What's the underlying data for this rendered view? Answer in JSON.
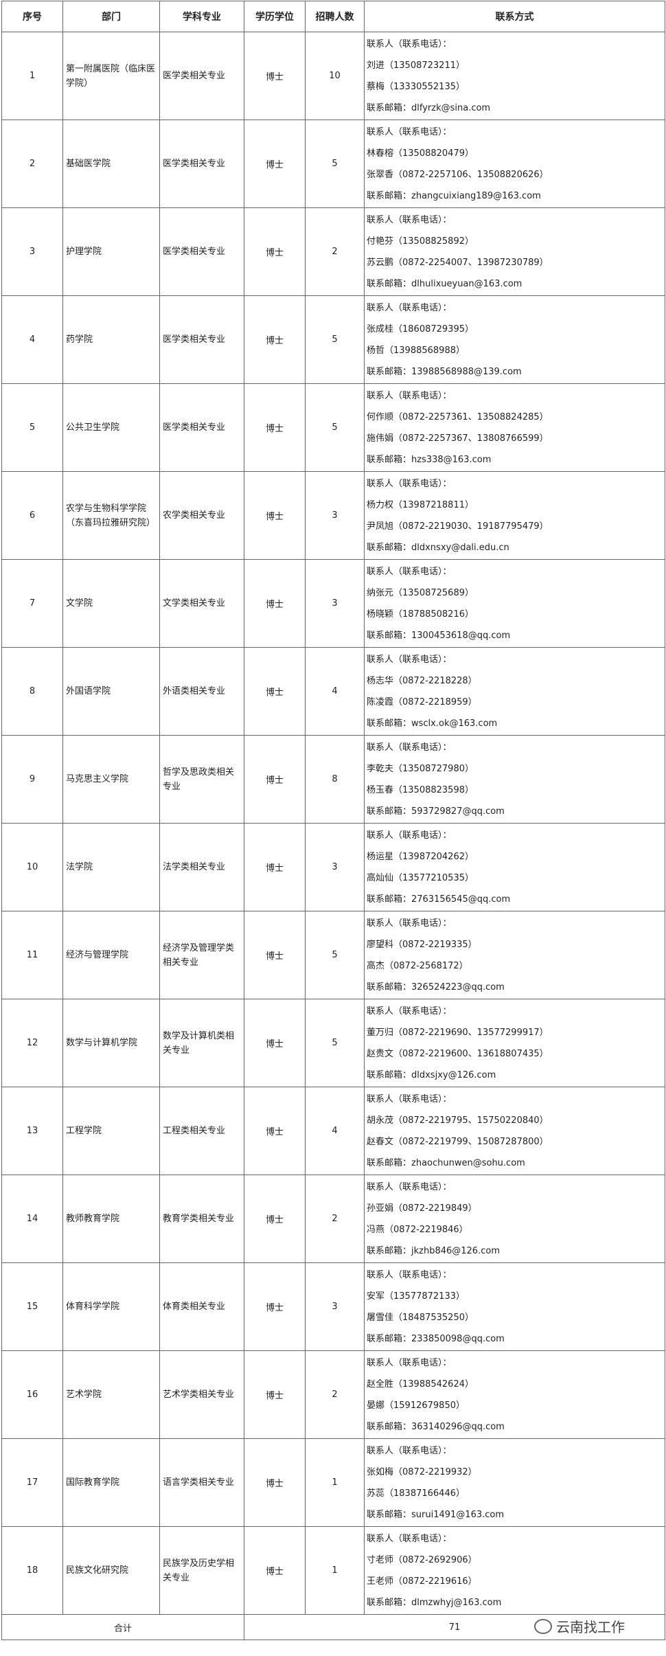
{
  "table": {
    "headers": [
      "序号",
      "部门",
      "学科专业",
      "学历学位",
      "招聘人数",
      "联系方式"
    ],
    "rows": [
      [
        "1",
        "第一附属医院（临床医学院）",
        "医学类相关专业",
        "博士",
        "10",
        [
          "联系人（联系电话）：",
          "刘进（13508723211）",
          "蔡梅（13330552135）",
          "联系邮箱：dlfyrzk@sina.com"
        ]
      ],
      [
        "2",
        "基础医学院",
        "医学类相关专业",
        "博士",
        "5",
        [
          "联系人（联系电话）：",
          "林春榕（13508820479）",
          "张翠香（0872-2257106、13508820626）",
          "联系邮箱：zhangcuixiang189@163.com"
        ]
      ],
      [
        "3",
        "护理学院",
        "医学类相关专业",
        "博士",
        "2",
        [
          "联系人（联系电话）：",
          "付艳芬（13508825892）",
          "苏云鹏（0872-2254007、13987230789）",
          "联系邮箱：dlhulixueyuan@163.com"
        ]
      ],
      [
        "4",
        "药学院",
        "医学类相关专业",
        "博士",
        "5",
        [
          "联系人（联系电话）：",
          "张成桂（18608729395）",
          "杨哲（13988568988）",
          "联系邮箱：13988568988@139.com"
        ]
      ],
      [
        "5",
        "公共卫生学院",
        "医学类相关专业",
        "博士",
        "5",
        [
          "联系人（联系电话）：",
          "何作顺（0872-2257361、13508824285）",
          "施伟娟（0872-2257367、13808766599）",
          "联系邮箱：hzs338@163.com"
        ]
      ],
      [
        "6",
        "农学与生物科学学院（东喜玛拉雅研究院）",
        "农学类相关专业",
        "博士",
        "3",
        [
          "联系人（联系电话）：",
          "杨力权（13987218811）",
          "尹凤旭（0872-2219030、19187795479）",
          "联系邮箱：dldxnsxy@dali.edu.cn"
        ]
      ],
      [
        "7",
        "文学院",
        "文学类相关专业",
        "博士",
        "3",
        [
          "联系人（联系电话）：",
          "纳张元（13508725689）",
          "杨晓颖（18788508216）",
          "联系邮箱：1300453618@qq.com"
        ]
      ],
      [
        "8",
        "外国语学院",
        "外语类相关专业",
        "博士",
        "4",
        [
          "联系人（联系电话）：",
          "杨志华（0872-2218228）",
          "陈凌霞（0872-2218959）",
          "联系邮箱：wsclx.ok@163.com"
        ]
      ],
      [
        "9",
        "马克思主义学院",
        "哲学及思政类相关专业",
        "博士",
        "8",
        [
          "联系人（联系电话）：",
          "李乾夫（13508727980）",
          "杨玉春（13508823598）",
          "联系邮箱：593729827@qq.com"
        ]
      ],
      [
        "10",
        "法学院",
        "法学类相关专业",
        "博士",
        "3",
        [
          "联系人（联系电话）：",
          "杨运星（13987204262）",
          "高灿仙（13577210535）",
          "联系邮箱：2763156545@qq.com"
        ]
      ],
      [
        "11",
        "经济与管理学院",
        "经济学及管理学类相关专业",
        "博士",
        "5",
        [
          "联系人（联系电话）：",
          "廖望科（0872-2219335）",
          "高杰（0872-2568172）",
          "联系邮箱：326524223@qq.com"
        ]
      ],
      [
        "12",
        "数学与计算机学院",
        "数学及计算机类相关专业",
        "博士",
        "5",
        [
          "联系人（联系电话）：",
          "董万归（0872-2219690、13577299917）",
          "赵贵文（0872-2219600、13618807435）",
          "联系邮箱：dldxsjxy@126.com"
        ]
      ],
      [
        "13",
        "工程学院",
        "工程类相关专业",
        "博士",
        "4",
        [
          "联系人（联系电话）：",
          "胡永茂（0872-2219795、15750220840）",
          "赵春文（0872-2219799、15087287800）",
          "联系邮箱：zhaochunwen@sohu.com"
        ]
      ],
      [
        "14",
        "教师教育学院",
        "教育学类相关专业",
        "博士",
        "2",
        [
          "联系人（联系电话）：",
          "孙亚娟（0872-2219849）",
          "冯燕（0872-2219846）",
          "联系邮箱：jkzhb846@126.com"
        ]
      ],
      [
        "15",
        "体育科学学院",
        "体育类相关专业",
        "博士",
        "3",
        [
          "联系人（联系电话）：",
          "安军（13577872133）",
          "屠雪佳（18487535250）",
          "联系邮箱：233850098@qq.com"
        ]
      ],
      [
        "16",
        "艺术学院",
        "艺术学类相关专业",
        "博士",
        "2",
        [
          "联系人（联系电话）：",
          "赵全胜（13988542624）",
          "晏娜（15912679850）",
          "联系邮箱：363140296@qq.com"
        ]
      ],
      [
        "17",
        "国际教育学院",
        "语言学类相关专业",
        "博士",
        "1",
        [
          "联系人（联系电话）：",
          "张如梅（0872-2219932）",
          "苏蕊（18387166446）",
          "联系邮箱：surui1491@163.com"
        ]
      ],
      [
        "18",
        "民族文化研究院",
        "民族学及历史学相关专业",
        "博士",
        "1",
        [
          "联系人（联系电话）：",
          "寸老师（0872-2692906）",
          "王老师（0872-2219616）",
          "联系邮箱：dlmzwhyj@163.com"
        ]
      ]
    ],
    "total": {
      "label": "合计",
      "value": "71"
    }
  },
  "watermark": "云南找工作"
}
